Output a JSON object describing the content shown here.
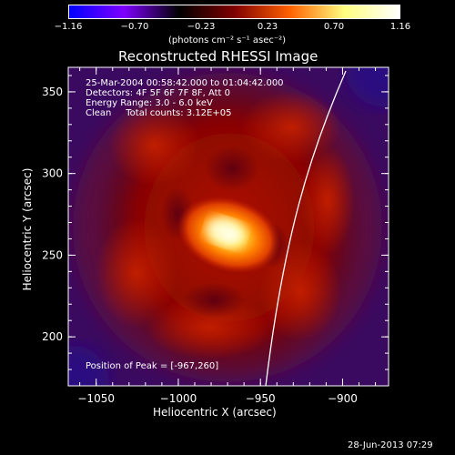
{
  "colorbar": {
    "tick_labels": [
      "−1.16",
      "−0.70",
      "−0.23",
      "0.23",
      "0.70",
      "1.16"
    ],
    "unit_label": "(photons cm⁻² s⁻¹ asec⁻²)",
    "colors": [
      "#0000ff",
      "#7f00ff",
      "#000000",
      "#7f0000",
      "#ff6000",
      "#ffff80",
      "#ffffff"
    ]
  },
  "chart_data": {
    "type": "heatmap",
    "title": "Reconstructed RHESSI Image",
    "xlabel": "Heliocentric X (arcsec)",
    "ylabel": "Heliocentric Y (arcsec)",
    "xlim": [
      -1067,
      -872
    ],
    "ylim": [
      170,
      365
    ],
    "x_ticks": [
      -1050,
      -1000,
      -950,
      -900
    ],
    "x_tick_labels": [
      "−1050",
      "−1000",
      "−950",
      "−900"
    ],
    "y_ticks": [
      200,
      250,
      300,
      350
    ],
    "y_tick_labels": [
      "200",
      "250",
      "300",
      "350"
    ],
    "peak": [
      -967,
      260
    ],
    "annotations": [
      "25-Mar-2004 00:58:42.000 to 01:04:42.000",
      "Detectors: 4F 5F 6F 7F 8F, Att 0",
      "Energy Range: 3.0 - 6.0 keV",
      "Clean     Total counts: 3.12E+05"
    ],
    "peak_label": "Position of Peak = [-967,260]"
  },
  "footer": {
    "timestamp": "28-Jun-2013 07:29"
  }
}
